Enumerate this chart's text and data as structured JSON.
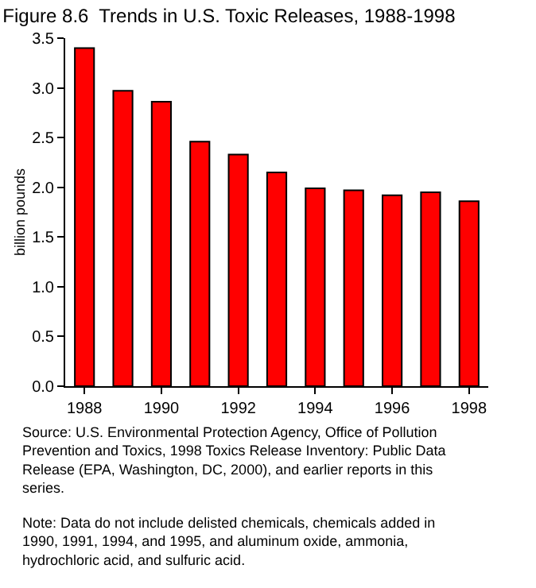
{
  "chart_data": {
    "type": "bar",
    "title": "Figure 8.6  Trends in U.S. Toxic Releases, 1988-1998",
    "ylabel": "billion pounds",
    "x": [
      1988,
      1989,
      1990,
      1991,
      1992,
      1993,
      1994,
      1995,
      1996,
      1997,
      1998
    ],
    "values": [
      3.4,
      2.97,
      2.86,
      2.46,
      2.33,
      2.15,
      1.99,
      1.97,
      1.92,
      1.95,
      1.86
    ],
    "color": "#ff0000",
    "xlim": [
      1987.5,
      1998.5
    ],
    "xticks": [
      1988,
      1990,
      1992,
      1994,
      1996,
      1998
    ],
    "ylim": [
      0,
      3.5
    ],
    "yticks": [
      {
        "value": 0,
        "label": "0.0"
      },
      {
        "value": 0.5,
        "label": "0.5"
      },
      {
        "value": 1,
        "label": "1.0"
      },
      {
        "value": 1.5,
        "label": "1.5"
      },
      {
        "value": 2,
        "label": "2.0"
      },
      {
        "value": 2.5,
        "label": "2.5"
      },
      {
        "value": 3,
        "label": "3.0"
      },
      {
        "value": 3.5,
        "label": "3.5"
      }
    ],
    "annotations": [
      "Source: U.S. Environmental Protection Agency, Office of Pollution Prevention and Toxics, 1998 Toxics Release Inventory: Public Data Release (EPA, Washington, DC, 2000), and earlier reports in this series.",
      "Note: Data do not include delisted chemicals, chemicals added in 1990, 1991, 1994, and 1995, and aluminum oxide, ammonia, hydrochloric acid, and sulfuric acid."
    ]
  }
}
